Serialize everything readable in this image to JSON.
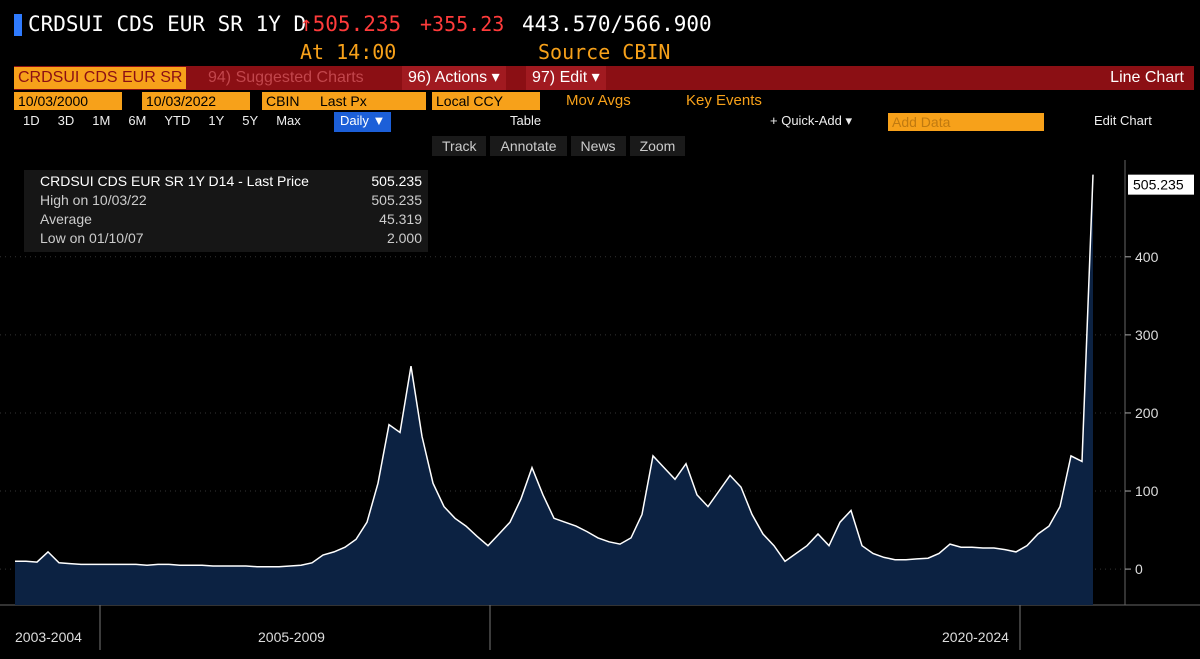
{
  "header": {
    "ticker": "CRDSUI CDS EUR SR 1Y D",
    "last": "↑505.235",
    "change": "+355.23",
    "bid_ask": "443.570/566.900",
    "time": "At 14:00",
    "source": "Source CBIN"
  },
  "toolbar": {
    "security": "CRDSUI CDS EUR SR",
    "suggested": "94) Suggested Charts",
    "actions": "96) Actions ▾",
    "edit": "97) Edit ▾",
    "chart_type": "Line Chart"
  },
  "settings": {
    "start": "10/03/2000",
    "end": "10/03/2022",
    "source": "CBIN",
    "field": "Last Px",
    "currency": "Local CCY",
    "mov_avgs": "Mov Avgs",
    "key_events": "Key Events"
  },
  "periods": [
    "1D",
    "3D",
    "1M",
    "6M",
    "YTD",
    "1Y",
    "5Y",
    "Max"
  ],
  "controls": {
    "frequency": "Daily ▼",
    "table": "Table",
    "quick_add": "+ Quick-Add ▾",
    "add_data": "Add Data",
    "edit_chart": "Edit Chart"
  },
  "tools": [
    "Track",
    "Annotate",
    "News",
    "Zoom"
  ],
  "chart_data": {
    "type": "area",
    "series": [
      {
        "name": "CRDSUI CDS EUR SR 1Y D14 - Last Price",
        "color": "#ffffff",
        "fill": "#0c2242",
        "values": [
          10,
          10,
          9,
          22,
          8,
          7,
          6,
          6,
          6,
          6,
          6,
          6,
          5,
          6,
          6,
          5,
          5,
          5,
          4,
          4,
          4,
          4,
          3,
          3,
          3,
          4,
          5,
          8,
          18,
          22,
          28,
          38,
          60,
          110,
          185,
          175,
          260,
          170,
          110,
          80,
          65,
          55,
          42,
          30,
          45,
          60,
          90,
          130,
          95,
          65,
          60,
          55,
          48,
          40,
          35,
          32,
          40,
          70,
          145,
          130,
          115,
          135,
          95,
          80,
          100,
          120,
          105,
          70,
          45,
          30,
          10,
          20,
          30,
          45,
          30,
          60,
          75,
          30,
          20,
          15,
          12,
          12,
          13,
          14,
          20,
          32,
          28,
          28,
          27,
          27,
          25,
          22,
          30,
          45,
          55,
          80,
          145,
          138,
          505.235
        ]
      }
    ],
    "legend": [
      {
        "label": "CRDSUI CDS EUR SR 1Y D14 - Last Price",
        "value": "505.235"
      },
      {
        "label": "High on 10/03/22",
        "value": "505.235"
      },
      {
        "label": "Average",
        "value": "45.319"
      },
      {
        "label": "Low on 01/10/07",
        "value": "2.000"
      }
    ],
    "price_tag": "505.235",
    "x_labels": [
      "2003-2004",
      "2005-2009",
      "2020-2024"
    ],
    "ylim": [
      -46,
      524
    ],
    "yticks": [
      0,
      100,
      200,
      300,
      400
    ],
    "grid": true
  }
}
